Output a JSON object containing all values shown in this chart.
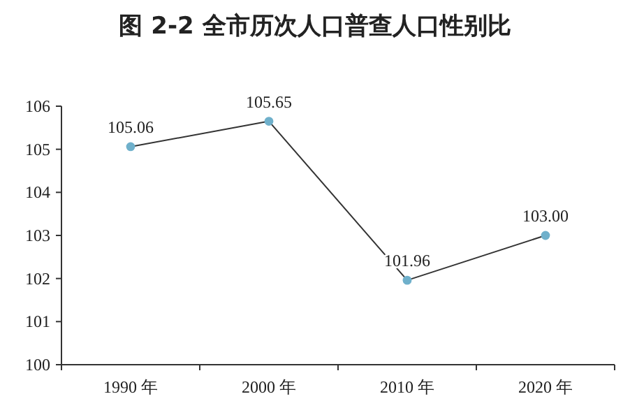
{
  "chart_data": {
    "type": "line",
    "title": "图 2-2  全市历次人口普查人口性别比",
    "categories": [
      "1990 年",
      "2000 年",
      "2010 年",
      "2020 年"
    ],
    "series": [
      {
        "color": "#6fb0cb",
        "values": [
          105.06,
          105.65,
          101.96,
          103.0
        ]
      }
    ],
    "value_labels": [
      "105.06",
      "105.65",
      "101.96",
      "103.00"
    ],
    "ylim": [
      100,
      106
    ],
    "yticks": [
      100,
      101,
      102,
      103,
      104,
      105,
      106
    ],
    "marker": "circle",
    "line_style": "solid",
    "grid": false
  }
}
